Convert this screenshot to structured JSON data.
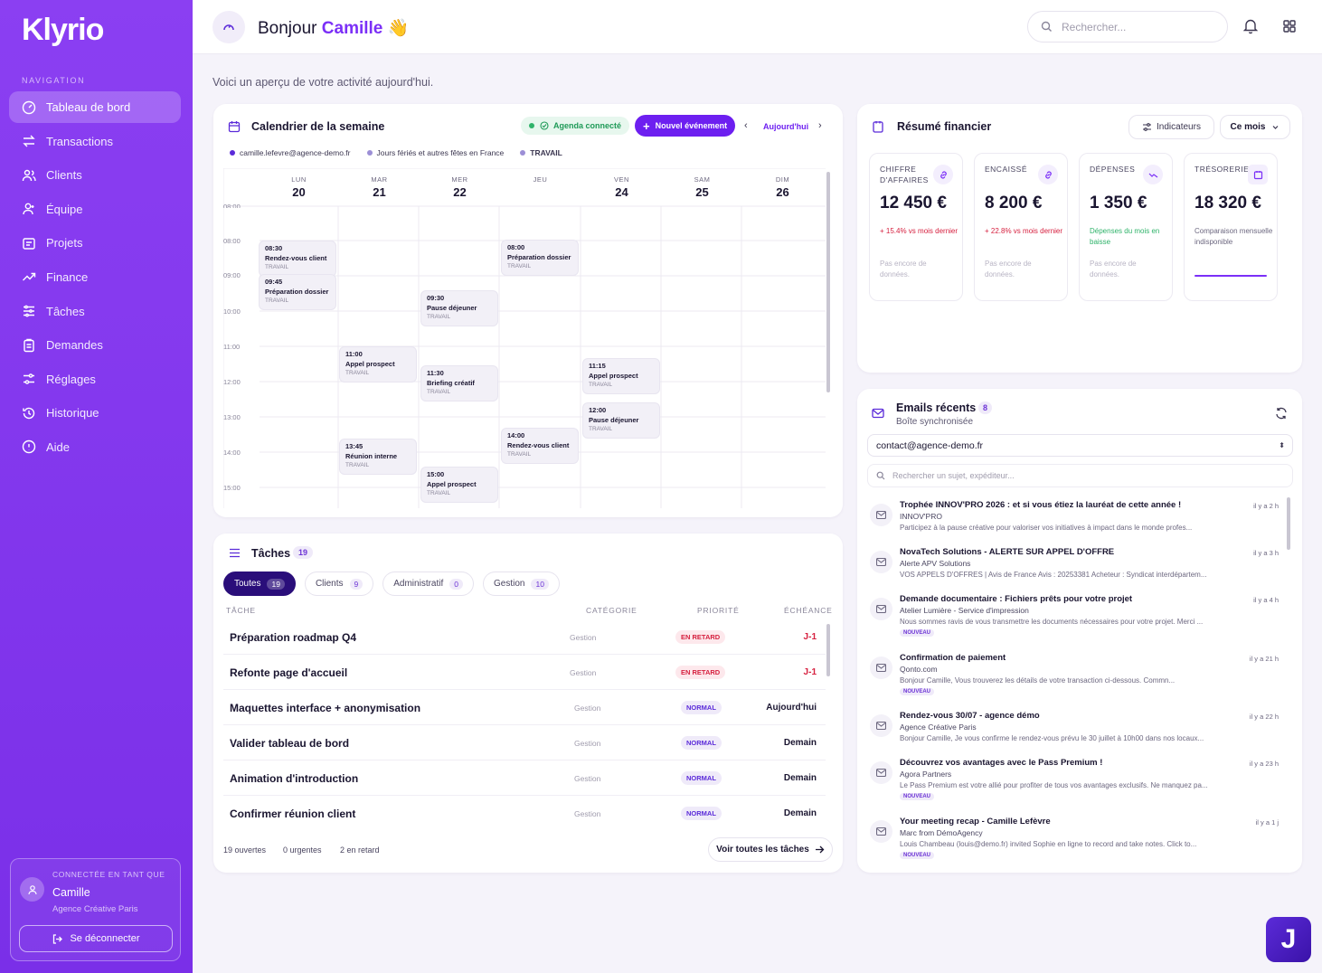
{
  "app": {
    "logo": "Klyrio"
  },
  "sidebar": {
    "nav_label": "NAVIGATION",
    "items": [
      {
        "label": "Tableau de bord",
        "icon": "dashboard-icon"
      },
      {
        "label": "Transactions",
        "icon": "transfer-icon"
      },
      {
        "label": "Clients",
        "icon": "users-icon"
      },
      {
        "label": "Équipe",
        "icon": "team-icon"
      },
      {
        "label": "Projets",
        "icon": "folder-icon"
      },
      {
        "label": "Finance",
        "icon": "trend-icon"
      },
      {
        "label": "Tâches",
        "icon": "tasks-icon"
      },
      {
        "label": "Demandes",
        "icon": "clipboard-icon"
      },
      {
        "label": "Réglages",
        "icon": "settings-icon"
      },
      {
        "label": "Historique",
        "icon": "history-icon"
      },
      {
        "label": "Aide",
        "icon": "help-icon"
      }
    ],
    "user": {
      "label": "CONNECTÉE EN TANT QUE",
      "name": "Camille",
      "org": "Agence Créative Paris",
      "logout": "Se déconnecter"
    }
  },
  "header": {
    "greeting": "Bonjour",
    "name": "Camille",
    "emoji": "👋",
    "search_placeholder": "Rechercher..."
  },
  "subtitle": "Voici un aperçu de votre activité aujourd'hui.",
  "calendar": {
    "title": "Calendrier de la semaine",
    "connected": "Agenda connecté",
    "new_event": "Nouvel événement",
    "today": "Aujourd'hui",
    "chips": [
      {
        "label": "camille.lefevre@agence-demo.fr",
        "color": "#5b2bd9"
      },
      {
        "label": "Jours fériés et autres fêtes en France",
        "color": "#9c8fd6"
      },
      {
        "label": "TRAVAIL",
        "color": "#9c8fd6"
      }
    ],
    "days": [
      {
        "d": "LUN",
        "n": "20"
      },
      {
        "d": "MAR",
        "n": "21"
      },
      {
        "d": "MER",
        "n": "22"
      },
      {
        "d": "JEU",
        "n": ""
      },
      {
        "d": "VEN",
        "n": "24"
      },
      {
        "d": "SAM",
        "n": "25"
      },
      {
        "d": "DIM",
        "n": "26"
      }
    ],
    "times": [
      "08:00",
      "08:00",
      "09:00",
      "10:00",
      "11:00",
      "12:00",
      "13:00",
      "14:00",
      "15:00"
    ],
    "events": [
      {
        "time": "08:30",
        "title": "Rendez-vous client",
        "tag": "TRAVAIL"
      },
      {
        "time": "09:45",
        "title": "Préparation dossier",
        "tag": "TRAVAIL"
      },
      {
        "time": "08:00",
        "title": "Préparation dossier",
        "tag": "TRAVAIL"
      },
      {
        "time": "09:30",
        "title": "Pause déjeuner",
        "tag": "TRAVAIL"
      },
      {
        "time": "11:00",
        "title": "Appel prospect",
        "tag": "TRAVAIL"
      },
      {
        "time": "11:30",
        "title": "Briefing créatif",
        "tag": "TRAVAIL"
      },
      {
        "time": "11:15",
        "title": "Appel prospect",
        "tag": "TRAVAIL"
      },
      {
        "time": "12:00",
        "title": "Pause déjeuner",
        "tag": "TRAVAIL"
      },
      {
        "time": "14:00",
        "title": "Rendez-vous client",
        "tag": "TRAVAIL"
      },
      {
        "time": "13:45",
        "title": "Réunion interne",
        "tag": "TRAVAIL"
      },
      {
        "time": "15:00",
        "title": "Appel prospect",
        "tag": "TRAVAIL"
      }
    ]
  },
  "tasks": {
    "title": "Tâches",
    "count": "19",
    "tabs": [
      {
        "label": "Toutes",
        "count": "19"
      },
      {
        "label": "Clients",
        "count": "9"
      },
      {
        "label": "Administratif",
        "count": "0"
      },
      {
        "label": "Gestion",
        "count": "10"
      }
    ],
    "headers": {
      "task": "TÂCHE",
      "category": "CATÉGORIE",
      "priority": "PRIORITÉ",
      "due": "ÉCHÉANCE"
    },
    "rows": [
      {
        "name": "Préparation roadmap Q4",
        "category": "Gestion",
        "priority": "EN RETARD",
        "due": "J-1"
      },
      {
        "name": "Refonte page d'accueil",
        "category": "Gestion",
        "priority": "EN RETARD",
        "due": "J-1"
      },
      {
        "name": "Maquettes interface + anonymisation",
        "category": "Gestion",
        "priority": "NORMAL",
        "due": "Aujourd'hui"
      },
      {
        "name": "Valider tableau de bord",
        "category": "Gestion",
        "priority": "NORMAL",
        "due": "Demain"
      },
      {
        "name": "Animation d'introduction",
        "category": "Gestion",
        "priority": "NORMAL",
        "due": "Demain"
      },
      {
        "name": "Confirmer réunion client",
        "category": "Gestion",
        "priority": "NORMAL",
        "due": "Demain"
      }
    ],
    "footer": {
      "open": "19 ouvertes",
      "urgent": "0 urgentes",
      "late": "2 en retard",
      "view_all": "Voir toutes les tâches"
    }
  },
  "finance": {
    "title": "Résumé financier",
    "indicators": "Indicateurs",
    "period": "Ce mois",
    "kpis": [
      {
        "label": "CHIFFRE D'AFFAIRES",
        "value": "12 450 €",
        "delta": "+ 15.4% vs mois dernier",
        "note": "Pas encore de données."
      },
      {
        "label": "ENCAISSÉ",
        "value": "8 200 €",
        "delta": "+ 22.8% vs mois dernier",
        "note": "Pas encore de données."
      },
      {
        "label": "DÉPENSES",
        "value": "1 350 €",
        "delta": "Dépenses du mois en baisse",
        "note": "Pas encore de données."
      },
      {
        "label": "TRÉSORERIE",
        "value": "18 320 €",
        "delta": "Comparaison mensuelle indisponible",
        "note": ""
      }
    ]
  },
  "emails": {
    "title": "Emails récents",
    "count": "8",
    "subtitle": "Boîte synchronisée",
    "account": "contact@agence-demo.fr",
    "search_placeholder": "Rechercher un sujet, expéditeur...",
    "items": [
      {
        "subject": "Trophée INNOV'PRO 2026 : et si vous étiez la lauréat de cette année !",
        "from": "INNOV'PRO",
        "preview": "Participez à la pause créative pour valoriser vos initiatives à impact dans le monde profes...",
        "time": "il y a 2 h",
        "badge": ""
      },
      {
        "subject": "NovaTech Solutions - ALERTE SUR APPEL D'OFFRE",
        "from": "Alerte APV Solutions",
        "preview": "VOS APPELS D'OFFRES | Avis de France Avis : 20253381 Acheteur : Syndicat interdépartem...",
        "time": "il y a 3 h",
        "badge": ""
      },
      {
        "subject": "Demande documentaire : Fichiers prêts pour votre projet",
        "from": "Atelier Lumière - Service d'impression",
        "preview": "Nous sommes ravis de vous transmettre les documents nécessaires pour votre projet. Merci ...",
        "time": "il y a 4 h",
        "badge": "NOUVEAU"
      },
      {
        "subject": "Confirmation de paiement",
        "from": "Qonto.com",
        "preview": "Bonjour Camille, Vous trouverez les détails de votre transaction ci-dessous. Commn...",
        "time": "il y a 21 h",
        "badge": "NOUVEAU"
      },
      {
        "subject": "Rendez-vous 30/07 - agence démo",
        "from": "Agence Créative Paris",
        "preview": "Bonjour Camille, Je vous confirme le rendez-vous prévu le 30 juillet à 10h00 dans nos locaux...",
        "time": "il y a 22 h",
        "badge": ""
      },
      {
        "subject": "Découvrez vos avantages avec le Pass Premium !",
        "from": "Agora Partners",
        "preview": "Le Pass Premium est votre allié pour profiter de tous vos avantages exclusifs. Ne manquez pa...",
        "time": "il y a 23 h",
        "badge": "NOUVEAU"
      },
      {
        "subject": "Your meeting recap - Camille Lefèvre",
        "from": "Marc from DémoAgency",
        "preview": "Louis Chambeau (louis@demo.fr) invited Sophie en ligne to record and take notes. Click to...",
        "time": "il y a 1 j",
        "badge": "NOUVEAU"
      }
    ]
  },
  "assistant": {
    "label": "J"
  },
  "colors": {
    "accent": "#7b2ff7",
    "danger": "#d6203f",
    "success": "#2fb36a"
  }
}
